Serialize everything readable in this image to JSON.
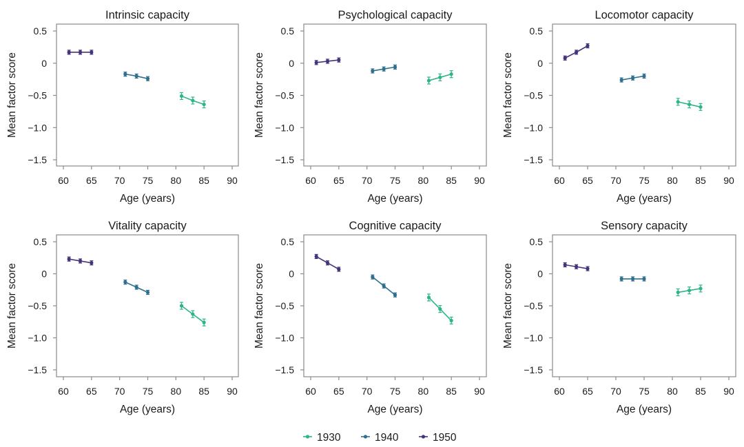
{
  "chart_data": [
    {
      "type": "line",
      "title": "Intrinsic capacity",
      "xlabel": "Age (years)",
      "ylabel": "Mean factor score",
      "xlim": [
        59,
        91
      ],
      "ylim": [
        -1.6,
        0.6
      ],
      "xticks": [
        60,
        65,
        70,
        75,
        80,
        85,
        90
      ],
      "xtick_labels": [
        "60",
        "65",
        "70",
        "75",
        "80",
        "85",
        "90"
      ],
      "yticks": [
        0.5,
        0,
        -0.5,
        -1.0,
        -1.5
      ],
      "ytick_labels": [
        "0.5",
        "0",
        "−0.5",
        "−1.0",
        "−1.5"
      ],
      "grid": false,
      "series": [
        {
          "name": "1930",
          "x": [
            81,
            83,
            85
          ],
          "y": [
            -0.51,
            -0.58,
            -0.64
          ]
        },
        {
          "name": "1940",
          "x": [
            71,
            73,
            75
          ],
          "y": [
            -0.17,
            -0.2,
            -0.24
          ]
        },
        {
          "name": "1950",
          "x": [
            61,
            63,
            65
          ],
          "y": [
            0.17,
            0.17,
            0.17
          ]
        }
      ]
    },
    {
      "type": "line",
      "title": "Psychological capacity",
      "xlabel": "Age (years)",
      "ylabel": "Mean factor score",
      "xlim": [
        59,
        91
      ],
      "ylim": [
        -1.6,
        0.6
      ],
      "xticks": [
        60,
        65,
        70,
        75,
        80,
        85,
        90
      ],
      "xtick_labels": [
        "60",
        "65",
        "70",
        "75",
        "80",
        "85",
        "90"
      ],
      "yticks": [
        0.5,
        0,
        -0.5,
        -1.0,
        -1.5
      ],
      "ytick_labels": [
        "0.5",
        "0",
        "−0.5",
        "−1.0",
        "−1.5"
      ],
      "grid": false,
      "series": [
        {
          "name": "1930",
          "x": [
            81,
            83,
            85
          ],
          "y": [
            -0.27,
            -0.22,
            -0.17
          ]
        },
        {
          "name": "1940",
          "x": [
            71,
            73,
            75
          ],
          "y": [
            -0.12,
            -0.09,
            -0.06
          ]
        },
        {
          "name": "1950",
          "x": [
            61,
            63,
            65
          ],
          "y": [
            0.01,
            0.03,
            0.05
          ]
        }
      ]
    },
    {
      "type": "line",
      "title": "Locomotor capacity",
      "xlabel": "Age (years)",
      "ylabel": "Mean factor score",
      "xlim": [
        59,
        91
      ],
      "ylim": [
        -1.6,
        0.6
      ],
      "xticks": [
        60,
        65,
        70,
        75,
        80,
        85,
        90
      ],
      "xtick_labels": [
        "60",
        "65",
        "70",
        "75",
        "80",
        "85",
        "90"
      ],
      "yticks": [
        0.5,
        0,
        -0.5,
        -1.0,
        -1.5
      ],
      "ytick_labels": [
        "0.5",
        "0",
        "−0.5",
        "−1.0",
        "−1.5"
      ],
      "grid": false,
      "series": [
        {
          "name": "1930",
          "x": [
            81,
            83,
            85
          ],
          "y": [
            -0.6,
            -0.64,
            -0.68
          ]
        },
        {
          "name": "1940",
          "x": [
            71,
            73,
            75
          ],
          "y": [
            -0.26,
            -0.23,
            -0.2
          ]
        },
        {
          "name": "1950",
          "x": [
            61,
            63,
            65
          ],
          "y": [
            0.08,
            0.17,
            0.27
          ]
        }
      ]
    },
    {
      "type": "line",
      "title": "Vitality capacity",
      "xlabel": "Age (years)",
      "ylabel": "Mean factor score",
      "xlim": [
        59,
        91
      ],
      "ylim": [
        -1.6,
        0.6
      ],
      "xticks": [
        60,
        65,
        70,
        75,
        80,
        85,
        90
      ],
      "xtick_labels": [
        "60",
        "65",
        "70",
        "75",
        "80",
        "85",
        "90"
      ],
      "yticks": [
        0.5,
        0,
        -0.5,
        -1.0,
        -1.5
      ],
      "ytick_labels": [
        "0.5",
        "0",
        "−0.5",
        "−1.0",
        "−1.5"
      ],
      "grid": false,
      "series": [
        {
          "name": "1930",
          "x": [
            81,
            83,
            85
          ],
          "y": [
            -0.5,
            -0.63,
            -0.76
          ]
        },
        {
          "name": "1940",
          "x": [
            71,
            73,
            75
          ],
          "y": [
            -0.13,
            -0.21,
            -0.29
          ]
        },
        {
          "name": "1950",
          "x": [
            61,
            63,
            65
          ],
          "y": [
            0.23,
            0.2,
            0.17
          ]
        }
      ]
    },
    {
      "type": "line",
      "title": "Cognitive capacity",
      "xlabel": "Age (years)",
      "ylabel": "Mean factor score",
      "xlim": [
        59,
        91
      ],
      "ylim": [
        -1.6,
        0.6
      ],
      "xticks": [
        60,
        65,
        70,
        75,
        80,
        85,
        90
      ],
      "xtick_labels": [
        "60",
        "65",
        "70",
        "75",
        "80",
        "85",
        "90"
      ],
      "yticks": [
        0.5,
        0,
        -0.5,
        -1.0,
        -1.5
      ],
      "ytick_labels": [
        "0.5",
        "0",
        "−0.5",
        "−1.0",
        "−1.5"
      ],
      "grid": false,
      "series": [
        {
          "name": "1930",
          "x": [
            81,
            83,
            85
          ],
          "y": [
            -0.37,
            -0.55,
            -0.73
          ]
        },
        {
          "name": "1940",
          "x": [
            71,
            73,
            75
          ],
          "y": [
            -0.05,
            -0.19,
            -0.33
          ]
        },
        {
          "name": "1950",
          "x": [
            61,
            63,
            65
          ],
          "y": [
            0.27,
            0.17,
            0.07
          ]
        }
      ]
    },
    {
      "type": "line",
      "title": "Sensory capacity",
      "xlabel": "Age (years)",
      "ylabel": "Mean factor score",
      "xlim": [
        59,
        91
      ],
      "ylim": [
        -1.6,
        0.6
      ],
      "xticks": [
        60,
        65,
        70,
        75,
        80,
        85,
        90
      ],
      "xtick_labels": [
        "60",
        "65",
        "70",
        "75",
        "80",
        "85",
        "90"
      ],
      "yticks": [
        0.5,
        0,
        -0.5,
        -1.0,
        -1.5
      ],
      "ytick_labels": [
        "0.5",
        "0",
        "−0.5",
        "−1.0",
        "−1.5"
      ],
      "grid": false,
      "series": [
        {
          "name": "1930",
          "x": [
            81,
            83,
            85
          ],
          "y": [
            -0.29,
            -0.26,
            -0.23
          ]
        },
        {
          "name": "1940",
          "x": [
            71,
            73,
            75
          ],
          "y": [
            -0.08,
            -0.08,
            -0.08
          ]
        },
        {
          "name": "1950",
          "x": [
            61,
            63,
            65
          ],
          "y": [
            0.14,
            0.11,
            0.08
          ]
        }
      ]
    }
  ],
  "legend": {
    "placement": "bottom-center",
    "items": [
      {
        "label": "1930",
        "color": "#2db487"
      },
      {
        "label": "1940",
        "color": "#2f6f8e"
      },
      {
        "label": "1950",
        "color": "#44327a"
      }
    ]
  },
  "series_colors": {
    "1930": "#2db487",
    "1940": "#2f6f8e",
    "1950": "#44327a"
  }
}
